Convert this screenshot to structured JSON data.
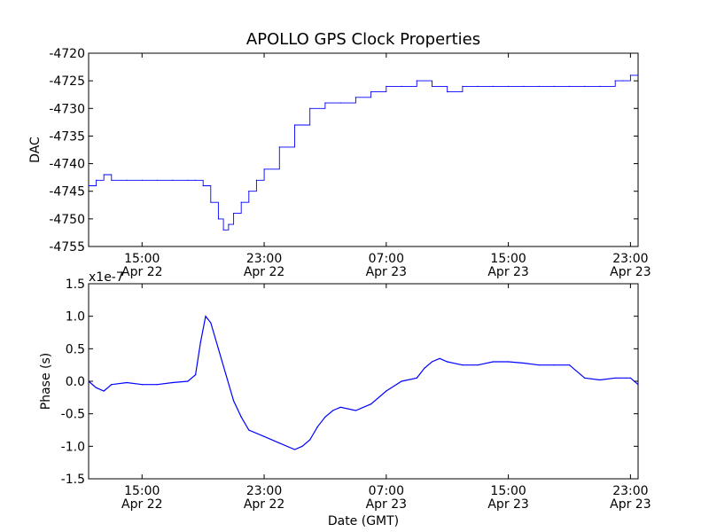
{
  "figure": {
    "title": "APOLLO GPS Clock Properties",
    "xlabel": "Date (GMT)"
  },
  "colors": {
    "series": "#0000ff",
    "axes": "#000000",
    "background": "#ffffff"
  },
  "chart_data": [
    {
      "type": "line",
      "title": "APOLLO GPS Clock Properties",
      "xlabel": "",
      "ylabel": "DAC",
      "x_ticks": [
        {
          "time": "15:00",
          "date": "Apr 22"
        },
        {
          "time": "23:00",
          "date": "Apr 22"
        },
        {
          "time": "07:00",
          "date": "Apr 23"
        },
        {
          "time": "15:00",
          "date": "Apr 23"
        },
        {
          "time": "23:00",
          "date": "Apr 23"
        }
      ],
      "xlim": [
        "Apr 22 11:30",
        "Apr 23 23:30"
      ],
      "ylim": [
        -4755,
        -4720
      ],
      "y_ticks": [
        -4720,
        -4725,
        -4730,
        -4735,
        -4740,
        -4745,
        -4750,
        -4755
      ],
      "grid": false,
      "style": "step",
      "series": [
        {
          "x": [
            "Apr 22 11:30",
            "Apr 22 12:00",
            "Apr 22 12:30",
            "Apr 22 13:00",
            "Apr 22 14:00",
            "Apr 22 15:00",
            "Apr 22 16:00",
            "Apr 22 17:00",
            "Apr 22 18:00",
            "Apr 22 18:30",
            "Apr 22 19:00",
            "Apr 22 19:30",
            "Apr 22 20:00",
            "Apr 22 20:20",
            "Apr 22 20:40",
            "Apr 22 21:00",
            "Apr 22 21:30",
            "Apr 22 22:00",
            "Apr 22 22:30",
            "Apr 22 23:00",
            "Apr 23 00:00",
            "Apr 23 01:00",
            "Apr 23 02:00",
            "Apr 23 03:00",
            "Apr 23 04:00",
            "Apr 23 05:00",
            "Apr 23 06:00",
            "Apr 23 07:00",
            "Apr 23 08:00",
            "Apr 23 09:00",
            "Apr 23 10:00",
            "Apr 23 11:00",
            "Apr 23 12:00",
            "Apr 23 13:00",
            "Apr 23 14:00",
            "Apr 23 15:00",
            "Apr 23 16:00",
            "Apr 23 17:00",
            "Apr 23 18:00",
            "Apr 23 19:00",
            "Apr 23 20:00",
            "Apr 23 21:00",
            "Apr 23 22:00",
            "Apr 23 22:30",
            "Apr 23 23:00",
            "Apr 23 23:30"
          ],
          "y": [
            -4744,
            -4743,
            -4742,
            -4743,
            -4743,
            -4743,
            -4743,
            -4743,
            -4743,
            -4743,
            -4744,
            -4747,
            -4750,
            -4752,
            -4751,
            -4749,
            -4747,
            -4745,
            -4743,
            -4741,
            -4737,
            -4733,
            -4730,
            -4729,
            -4729,
            -4728,
            -4727,
            -4726,
            -4726,
            -4725,
            -4726,
            -4727,
            -4726,
            -4726,
            -4726,
            -4726,
            -4726,
            -4726,
            -4726,
            -4726,
            -4726,
            -4726,
            -4725,
            -4725,
            -4724,
            -4724
          ]
        }
      ]
    },
    {
      "type": "line",
      "title": "",
      "xlabel": "Date (GMT)",
      "ylabel": "Phase (s)",
      "y_offset_text": "x1e-7",
      "x_ticks": [
        {
          "time": "15:00",
          "date": "Apr 22"
        },
        {
          "time": "23:00",
          "date": "Apr 22"
        },
        {
          "time": "07:00",
          "date": "Apr 23"
        },
        {
          "time": "15:00",
          "date": "Apr 23"
        },
        {
          "time": "23:00",
          "date": "Apr 23"
        }
      ],
      "xlim": [
        "Apr 22 11:30",
        "Apr 23 23:30"
      ],
      "ylim": [
        -1.5,
        1.5
      ],
      "y_ticks": [
        "1.5",
        "1.0",
        "0.5",
        "0.0",
        "-0.5",
        "-1.0",
        "-1.5"
      ],
      "grid": false,
      "series": [
        {
          "x": [
            "Apr 22 11:30",
            "Apr 22 12:00",
            "Apr 22 12:30",
            "Apr 22 13:00",
            "Apr 22 14:00",
            "Apr 22 15:00",
            "Apr 22 16:00",
            "Apr 22 17:00",
            "Apr 22 18:00",
            "Apr 22 18:30",
            "Apr 22 18:50",
            "Apr 22 19:10",
            "Apr 22 19:30",
            "Apr 22 20:00",
            "Apr 22 20:30",
            "Apr 22 21:00",
            "Apr 22 21:30",
            "Apr 22 22:00",
            "Apr 22 23:00",
            "Apr 23 00:00",
            "Apr 23 01:00",
            "Apr 23 01:30",
            "Apr 23 02:00",
            "Apr 23 02:30",
            "Apr 23 03:00",
            "Apr 23 03:30",
            "Apr 23 04:00",
            "Apr 23 05:00",
            "Apr 23 06:00",
            "Apr 23 07:00",
            "Apr 23 08:00",
            "Apr 23 09:00",
            "Apr 23 09:30",
            "Apr 23 10:00",
            "Apr 23 10:30",
            "Apr 23 11:00",
            "Apr 23 12:00",
            "Apr 23 13:00",
            "Apr 23 14:00",
            "Apr 23 15:00",
            "Apr 23 16:00",
            "Apr 23 17:00",
            "Apr 23 18:00",
            "Apr 23 19:00",
            "Apr 23 20:00",
            "Apr 23 21:00",
            "Apr 23 22:00",
            "Apr 23 23:00",
            "Apr 23 23:30"
          ],
          "y": [
            0.0,
            -0.1,
            -0.15,
            -0.05,
            -0.02,
            -0.05,
            -0.05,
            -0.02,
            0.0,
            0.1,
            0.6,
            1.0,
            0.9,
            0.5,
            0.1,
            -0.3,
            -0.55,
            -0.75,
            -0.85,
            -0.95,
            -1.05,
            -1.0,
            -0.9,
            -0.7,
            -0.55,
            -0.45,
            -0.4,
            -0.45,
            -0.35,
            -0.15,
            0.0,
            0.05,
            0.2,
            0.3,
            0.35,
            0.3,
            0.25,
            0.25,
            0.3,
            0.3,
            0.28,
            0.25,
            0.25,
            0.25,
            0.05,
            0.02,
            0.05,
            0.05,
            -0.05
          ]
        }
      ]
    }
  ]
}
